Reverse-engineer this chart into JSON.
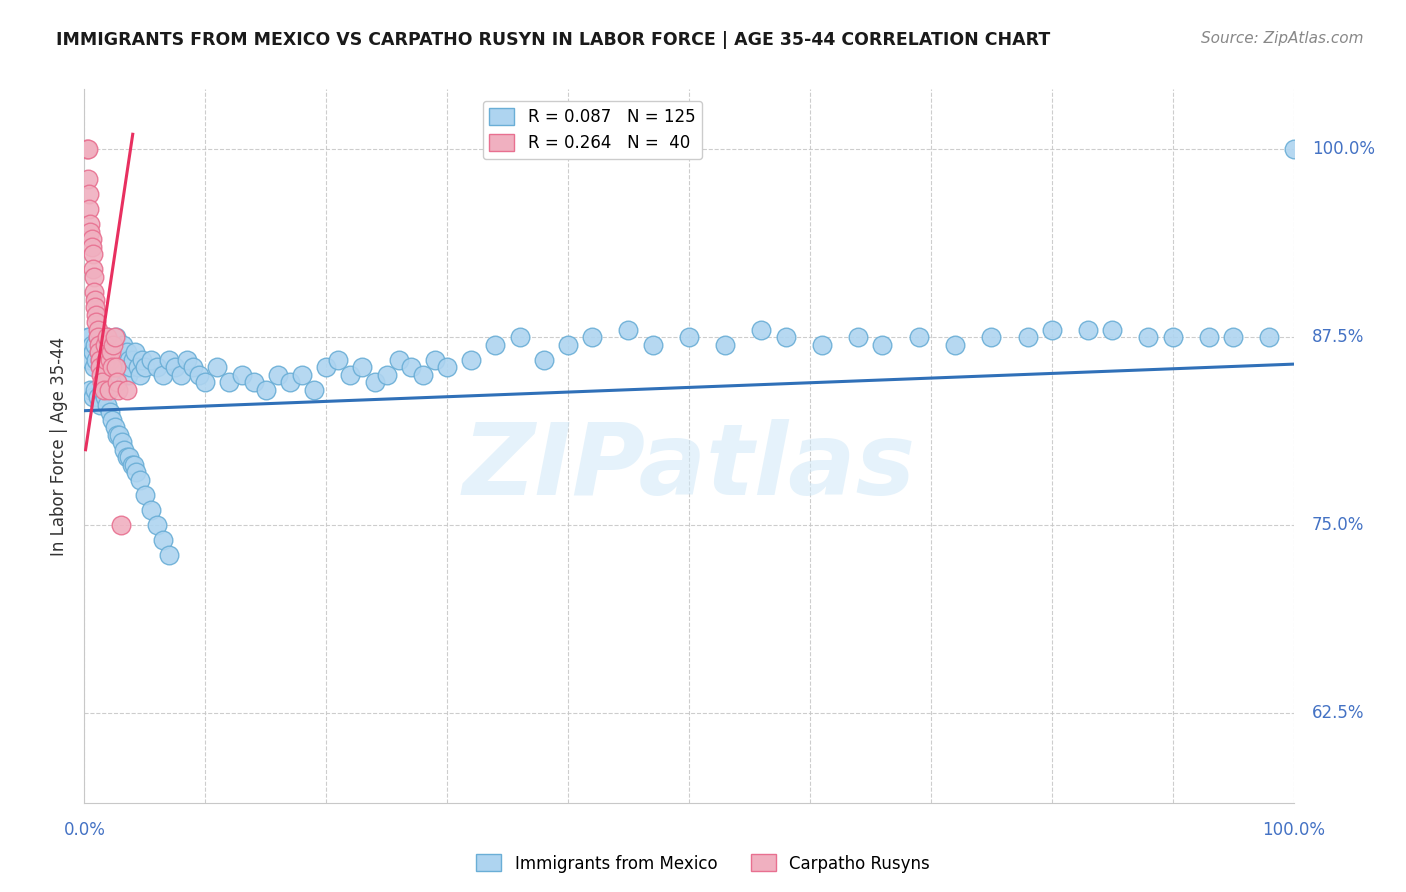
{
  "title": "IMMIGRANTS FROM MEXICO VS CARPATHO RUSYN IN LABOR FORCE | AGE 35-44 CORRELATION CHART",
  "source_text": "Source: ZipAtlas.com",
  "ylabel": "In Labor Force | Age 35-44",
  "y_tick_labels": [
    "62.5%",
    "75.0%",
    "87.5%",
    "100.0%"
  ],
  "y_tick_values": [
    0.625,
    0.75,
    0.875,
    1.0
  ],
  "x_range": [
    0.0,
    1.0
  ],
  "y_range": [
    0.565,
    1.04
  ],
  "watermark": "ZIPatlas",
  "blue_color": "#6aaed6",
  "blue_fill": "#aed4f0",
  "pink_color": "#e87090",
  "pink_fill": "#f0b0c0",
  "trend_blue": "#3070b8",
  "trend_pink": "#e83060",
  "grid_color": "#c8c8c8",
  "background_color": "#ffffff",
  "right_label_color": "#4472c4",
  "mexico_scatter_x": [
    0.003,
    0.004,
    0.005,
    0.006,
    0.007,
    0.008,
    0.009,
    0.01,
    0.011,
    0.012,
    0.013,
    0.014,
    0.015,
    0.016,
    0.017,
    0.018,
    0.019,
    0.02,
    0.021,
    0.022,
    0.023,
    0.024,
    0.025,
    0.026,
    0.027,
    0.028,
    0.03,
    0.031,
    0.032,
    0.033,
    0.034,
    0.035,
    0.036,
    0.037,
    0.038,
    0.04,
    0.042,
    0.044,
    0.046,
    0.048,
    0.05,
    0.055,
    0.06,
    0.065,
    0.07,
    0.075,
    0.08,
    0.085,
    0.09,
    0.095,
    0.1,
    0.11,
    0.12,
    0.13,
    0.14,
    0.15,
    0.16,
    0.17,
    0.18,
    0.19,
    0.2,
    0.21,
    0.22,
    0.23,
    0.24,
    0.25,
    0.26,
    0.27,
    0.28,
    0.29,
    0.3,
    0.32,
    0.34,
    0.36,
    0.38,
    0.4,
    0.42,
    0.45,
    0.47,
    0.5,
    0.53,
    0.56,
    0.58,
    0.61,
    0.64,
    0.66,
    0.69,
    0.72,
    0.75,
    0.78,
    0.8,
    0.83,
    0.85,
    0.88,
    0.9,
    0.93,
    0.95,
    0.98,
    1.0,
    0.005,
    0.007,
    0.009,
    0.011,
    0.013,
    0.015,
    0.017,
    0.019,
    0.021,
    0.023,
    0.025,
    0.027,
    0.029,
    0.031,
    0.033,
    0.035,
    0.037,
    0.039,
    0.041,
    0.043,
    0.046,
    0.05,
    0.055,
    0.06,
    0.065,
    0.07
  ],
  "mexico_scatter_y": [
    0.875,
    0.875,
    0.86,
    0.87,
    0.865,
    0.855,
    0.87,
    0.86,
    0.875,
    0.865,
    0.86,
    0.855,
    0.87,
    0.86,
    0.865,
    0.855,
    0.875,
    0.85,
    0.86,
    0.87,
    0.865,
    0.86,
    0.855,
    0.875,
    0.86,
    0.865,
    0.855,
    0.86,
    0.87,
    0.855,
    0.86,
    0.865,
    0.85,
    0.86,
    0.855,
    0.86,
    0.865,
    0.855,
    0.85,
    0.86,
    0.855,
    0.86,
    0.855,
    0.85,
    0.86,
    0.855,
    0.85,
    0.86,
    0.855,
    0.85,
    0.845,
    0.855,
    0.845,
    0.85,
    0.845,
    0.84,
    0.85,
    0.845,
    0.85,
    0.84,
    0.855,
    0.86,
    0.85,
    0.855,
    0.845,
    0.85,
    0.86,
    0.855,
    0.85,
    0.86,
    0.855,
    0.86,
    0.87,
    0.875,
    0.86,
    0.87,
    0.875,
    0.88,
    0.87,
    0.875,
    0.87,
    0.88,
    0.875,
    0.87,
    0.875,
    0.87,
    0.875,
    0.87,
    0.875,
    0.875,
    0.88,
    0.88,
    0.88,
    0.875,
    0.875,
    0.875,
    0.875,
    0.875,
    1.0,
    0.84,
    0.835,
    0.84,
    0.835,
    0.83,
    0.84,
    0.835,
    0.83,
    0.825,
    0.82,
    0.815,
    0.81,
    0.81,
    0.805,
    0.8,
    0.795,
    0.795,
    0.79,
    0.79,
    0.785,
    0.78,
    0.77,
    0.76,
    0.75,
    0.74,
    0.73
  ],
  "rusyn_scatter_x": [
    0.002,
    0.003,
    0.003,
    0.004,
    0.004,
    0.005,
    0.005,
    0.006,
    0.006,
    0.007,
    0.007,
    0.008,
    0.008,
    0.009,
    0.009,
    0.01,
    0.01,
    0.011,
    0.011,
    0.012,
    0.012,
    0.013,
    0.013,
    0.014,
    0.015,
    0.016,
    0.017,
    0.018,
    0.019,
    0.02,
    0.021,
    0.022,
    0.023,
    0.024,
    0.025,
    0.026,
    0.027,
    0.028,
    0.03,
    0.035
  ],
  "rusyn_scatter_y": [
    1.0,
    1.0,
    0.98,
    0.97,
    0.96,
    0.95,
    0.945,
    0.94,
    0.935,
    0.93,
    0.92,
    0.915,
    0.905,
    0.9,
    0.895,
    0.89,
    0.885,
    0.88,
    0.875,
    0.87,
    0.865,
    0.86,
    0.855,
    0.85,
    0.845,
    0.84,
    0.87,
    0.86,
    0.875,
    0.84,
    0.86,
    0.865,
    0.855,
    0.87,
    0.875,
    0.855,
    0.845,
    0.84,
    0.75,
    0.84
  ],
  "blue_trend_x": [
    0.0,
    1.0
  ],
  "blue_trend_y": [
    0.826,
    0.857
  ],
  "pink_trend_x": [
    0.001,
    0.04
  ],
  "pink_trend_y": [
    0.8,
    1.01
  ]
}
